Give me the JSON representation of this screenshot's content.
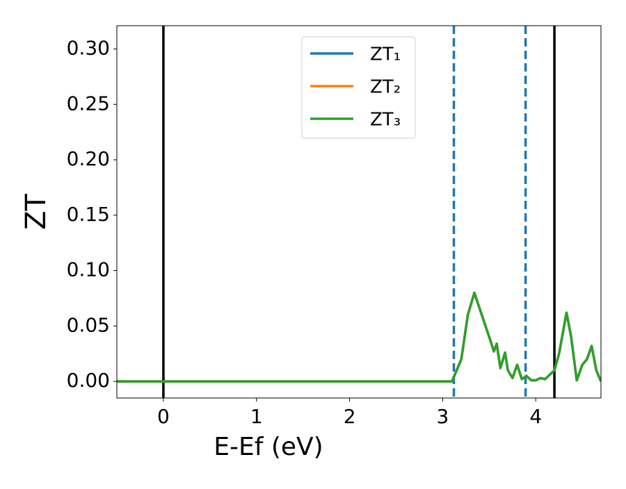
{
  "chart_data": {
    "type": "line",
    "xlabel": "E-Ef (eV)",
    "ylabel": "ZT",
    "x": [
      -0.5,
      3.0,
      3.1,
      3.2,
      3.27,
      3.34,
      3.4,
      3.46,
      3.5,
      3.55,
      3.58,
      3.62,
      3.67,
      3.7,
      3.75,
      3.8,
      3.85,
      3.9,
      3.95,
      4.0,
      4.05,
      4.1,
      4.2,
      4.25,
      4.33,
      4.38,
      4.44,
      4.5,
      4.55,
      4.6,
      4.65,
      4.7
    ],
    "series": [
      {
        "name": "ZT₁",
        "color": "#1f77b4",
        "values": [
          0,
          0,
          0,
          0.02,
          0.06,
          0.08,
          0.065,
          0.05,
          0.04,
          0.027,
          0.034,
          0.012,
          0.026,
          0.01,
          0.003,
          0.015,
          0.002,
          0.005,
          0.001,
          0.001,
          0.003,
          0.002,
          0.01,
          0.025,
          0.062,
          0.04,
          0.001,
          0.015,
          0.02,
          0.032,
          0.01,
          0
        ]
      },
      {
        "name": "ZT₂",
        "color": "#ff7f0e",
        "values": [
          0,
          0,
          0,
          0.02,
          0.06,
          0.08,
          0.065,
          0.05,
          0.04,
          0.027,
          0.034,
          0.012,
          0.026,
          0.01,
          0.003,
          0.015,
          0.002,
          0.005,
          0.001,
          0.001,
          0.003,
          0.002,
          0.01,
          0.025,
          0.062,
          0.04,
          0.001,
          0.015,
          0.02,
          0.032,
          0.01,
          0
        ]
      },
      {
        "name": "ZT₃",
        "color": "#2ca02c",
        "values": [
          0,
          0,
          0,
          0.02,
          0.06,
          0.08,
          0.065,
          0.05,
          0.04,
          0.027,
          0.034,
          0.012,
          0.026,
          0.01,
          0.003,
          0.015,
          0.002,
          0.005,
          0.001,
          0.001,
          0.003,
          0.002,
          0.01,
          0.025,
          0.062,
          0.04,
          0.001,
          0.015,
          0.02,
          0.032,
          0.01,
          0
        ]
      }
    ],
    "vlines": [
      {
        "x": 0,
        "color": "#000000",
        "dashed": false
      },
      {
        "x": 4.2,
        "color": "#000000",
        "dashed": false
      },
      {
        "x": 3.12,
        "color": "#1f77b4",
        "dashed": true
      },
      {
        "x": 3.89,
        "color": "#1f77b4",
        "dashed": true
      }
    ],
    "xlim": [
      -0.5,
      4.7
    ],
    "ylim": [
      -0.015,
      0.321
    ],
    "xticks": [
      0,
      1,
      2,
      3,
      4
    ],
    "yticks": [
      {
        "value": 0,
        "label": "0.00"
      },
      {
        "value": 0.05,
        "label": "0.05"
      },
      {
        "value": 0.1,
        "label": "0.10"
      },
      {
        "value": 0.15,
        "label": "0.15"
      },
      {
        "value": 0.2,
        "label": "0.20"
      },
      {
        "value": 0.25,
        "label": "0.25"
      },
      {
        "value": 0.3,
        "label": "0.30"
      }
    ],
    "legend": "upper center"
  }
}
